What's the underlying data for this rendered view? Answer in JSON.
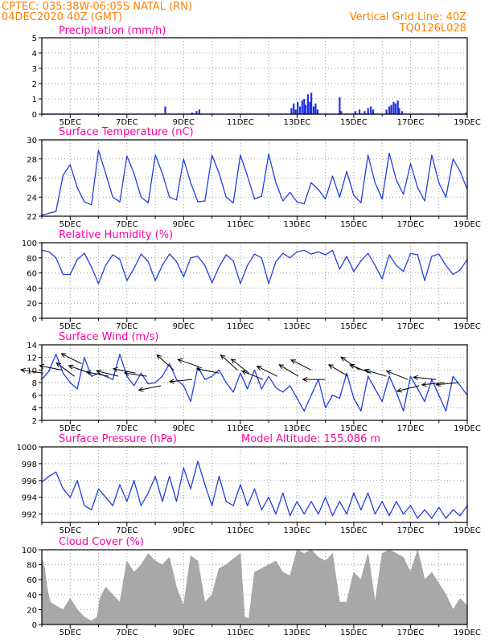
{
  "header": {
    "line1": "CPTEC:   035:38W-06:05S   NATAL (RN)",
    "line2": "04DEC2020 40Z (GMT)",
    "grid_label": "Vertical Grid Line: 40Z",
    "code": "TQ0126L028"
  },
  "colors": {
    "header": "#ff7f00",
    "title": "#ff00a0",
    "line": "#2040e0",
    "bar": "#2030e0",
    "cloud": "#a8a8a8"
  },
  "x_axis": {
    "ticks": [
      "5DEC",
      "7DEC",
      "9DEC",
      "11DEC",
      "13DEC",
      "15DEC",
      "17DEC",
      "19DEC"
    ]
  },
  "chart_data": [
    {
      "type": "bar",
      "title": "Precipitation (mm/h)",
      "ylim": [
        0,
        5
      ],
      "yticks": [
        "0",
        "1",
        "2",
        "3",
        "4",
        "5"
      ],
      "x_range_days": [
        4.0,
        19.0
      ],
      "bars": [
        [
          8.35,
          0.5
        ],
        [
          9.3,
          0.1
        ],
        [
          9.45,
          0.2
        ],
        [
          9.55,
          0.3
        ],
        [
          12.8,
          0.4
        ],
        [
          12.88,
          0.7
        ],
        [
          12.95,
          0.3
        ],
        [
          13.02,
          0.8
        ],
        [
          13.1,
          0.5
        ],
        [
          13.18,
          0.9
        ],
        [
          13.25,
          1.0
        ],
        [
          13.3,
          0.6
        ],
        [
          13.38,
          1.3
        ],
        [
          13.45,
          0.8
        ],
        [
          13.5,
          1.4
        ],
        [
          13.58,
          0.5
        ],
        [
          13.65,
          0.7
        ],
        [
          13.72,
          0.3
        ],
        [
          14.5,
          1.1
        ],
        [
          14.55,
          0.2
        ],
        [
          15.05,
          0.2
        ],
        [
          15.2,
          0.3
        ],
        [
          15.38,
          0.2
        ],
        [
          15.5,
          0.4
        ],
        [
          15.6,
          0.5
        ],
        [
          15.68,
          0.3
        ],
        [
          16.15,
          0.3
        ],
        [
          16.25,
          0.5
        ],
        [
          16.32,
          0.6
        ],
        [
          16.4,
          0.8
        ],
        [
          16.47,
          0.7
        ],
        [
          16.55,
          0.9
        ],
        [
          16.6,
          0.4
        ],
        [
          16.7,
          0.2
        ],
        [
          18.95,
          0.1
        ]
      ]
    },
    {
      "type": "line",
      "title": "Surface Temperature (nC)",
      "ylim": [
        22,
        30
      ],
      "yticks": [
        "22",
        "24",
        "26",
        "28",
        "30"
      ],
      "x_range_days": [
        4.0,
        19.0
      ],
      "x": [
        4.0,
        4.25,
        4.5,
        4.75,
        5.0,
        5.25,
        5.5,
        5.75,
        6.0,
        6.25,
        6.5,
        6.75,
        7.0,
        7.25,
        7.5,
        7.75,
        8.0,
        8.25,
        8.5,
        8.75,
        9.0,
        9.25,
        9.5,
        9.75,
        10.0,
        10.25,
        10.5,
        10.75,
        11.0,
        11.25,
        11.5,
        11.75,
        12.0,
        12.25,
        12.5,
        12.75,
        13.0,
        13.25,
        13.5,
        13.75,
        14.0,
        14.25,
        14.5,
        14.75,
        15.0,
        15.25,
        15.5,
        15.75,
        16.0,
        16.25,
        16.5,
        16.75,
        17.0,
        17.25,
        17.5,
        17.75,
        18.0,
        18.25,
        18.5,
        18.75,
        19.0
      ],
      "values": [
        22.1,
        22.3,
        22.5,
        26.3,
        27.4,
        25.0,
        23.5,
        23.2,
        28.9,
        26.5,
        24.0,
        23.5,
        28.3,
        26.5,
        24.0,
        23.4,
        28.4,
        26.5,
        24.0,
        23.7,
        28.0,
        25.5,
        23.5,
        23.6,
        28.4,
        26.5,
        24.0,
        23.4,
        28.4,
        26.2,
        23.8,
        24.1,
        28.5,
        25.5,
        23.6,
        24.5,
        23.5,
        23.3,
        25.5,
        24.8,
        23.8,
        26.2,
        24.0,
        26.7,
        24.2,
        23.4,
        28.4,
        25.5,
        23.8,
        28.6,
        25.8,
        24.3,
        27.5,
        25.0,
        23.6,
        28.4,
        25.5,
        24.0,
        28.0,
        26.7,
        24.8
      ]
    },
    {
      "type": "line",
      "title": "Relative Humidity (%)",
      "ylim": [
        0,
        100
      ],
      "yticks": [
        "0",
        "20",
        "40",
        "60",
        "80",
        "100"
      ],
      "x_range_days": [
        4.0,
        19.0
      ],
      "x": [
        4.0,
        4.25,
        4.5,
        4.75,
        5.0,
        5.25,
        5.5,
        5.75,
        6.0,
        6.25,
        6.5,
        6.75,
        7.0,
        7.25,
        7.5,
        7.75,
        8.0,
        8.25,
        8.5,
        8.75,
        9.0,
        9.25,
        9.5,
        9.75,
        10.0,
        10.25,
        10.5,
        10.75,
        11.0,
        11.25,
        11.5,
        11.75,
        12.0,
        12.25,
        12.5,
        12.75,
        13.0,
        13.25,
        13.5,
        13.75,
        14.0,
        14.25,
        14.5,
        14.75,
        15.0,
        15.25,
        15.5,
        15.75,
        16.0,
        16.25,
        16.5,
        16.75,
        17.0,
        17.25,
        17.5,
        17.75,
        18.0,
        18.25,
        18.5,
        18.75,
        19.0
      ],
      "values": [
        90,
        88,
        80,
        58,
        58,
        78,
        86,
        68,
        46,
        70,
        84,
        78,
        50,
        66,
        85,
        75,
        50,
        70,
        85,
        75,
        55,
        80,
        82,
        70,
        47,
        68,
        84,
        76,
        46,
        70,
        85,
        80,
        46,
        75,
        86,
        80,
        88,
        90,
        85,
        88,
        84,
        90,
        65,
        82,
        62,
        76,
        86,
        70,
        52,
        84,
        70,
        62,
        86,
        84,
        50,
        82,
        85,
        70,
        58,
        64,
        78
      ]
    },
    {
      "type": "line",
      "title": "Surface Wind (m/s)",
      "ylim": [
        2,
        14
      ],
      "yticks": [
        "2",
        "4",
        "6",
        "8",
        "10",
        "12",
        "14"
      ],
      "x_range_days": [
        4.0,
        19.0
      ],
      "x": [
        4.0,
        4.25,
        4.5,
        4.75,
        5.0,
        5.25,
        5.5,
        5.75,
        6.0,
        6.25,
        6.5,
        6.75,
        7.0,
        7.25,
        7.5,
        7.75,
        8.0,
        8.25,
        8.5,
        8.75,
        9.0,
        9.25,
        9.5,
        9.75,
        10.0,
        10.25,
        10.5,
        10.75,
        11.0,
        11.25,
        11.5,
        11.75,
        12.0,
        12.25,
        12.5,
        12.75,
        13.0,
        13.25,
        13.5,
        13.75,
        14.0,
        14.25,
        14.5,
        14.75,
        15.0,
        15.25,
        15.5,
        15.75,
        16.0,
        16.25,
        16.5,
        16.75,
        17.0,
        17.25,
        17.5,
        17.75,
        18.0,
        18.25,
        18.5,
        18.75,
        19.0
      ],
      "values": [
        8.5,
        9.8,
        12.5,
        9.5,
        8.0,
        7.0,
        12.0,
        9.0,
        9.5,
        9.0,
        8.5,
        12.5,
        9.0,
        7.5,
        9.5,
        7.8,
        8.0,
        9.0,
        11.0,
        8.5,
        7.5,
        5.0,
        10.5,
        8.5,
        9.0,
        10.0,
        8.0,
        6.5,
        9.5,
        7.0,
        10.0,
        7.0,
        9.0,
        7.2,
        6.5,
        7.5,
        5.5,
        3.5,
        6.0,
        8.5,
        4.0,
        6.0,
        5.5,
        9.5,
        5.5,
        3.5,
        9.0,
        7.0,
        5.0,
        9.0,
        6.5,
        3.5,
        9.0,
        7.0,
        5.0,
        8.5,
        6.0,
        3.5,
        9.0,
        7.5,
        6.0
      ],
      "arrows": [
        {
          "day": 4.05,
          "speed": 9.5,
          "u": -1.0,
          "v": 0.15
        },
        {
          "day": 4.7,
          "speed": 10.0,
          "u": -1.0,
          "v": 0.2
        },
        {
          "day": 5.15,
          "speed": 9.0,
          "u": -1.0,
          "v": 0.75
        },
        {
          "day": 5.4,
          "speed": 11.0,
          "u": -1.0,
          "v": 0.5
        },
        {
          "day": 5.7,
          "speed": 9.5,
          "u": -1.0,
          "v": 0.35
        },
        {
          "day": 6.35,
          "speed": 9.0,
          "u": -1.0,
          "v": 0.2
        },
        {
          "day": 6.7,
          "speed": 9.0,
          "u": -1.0,
          "v": 0.25
        },
        {
          "day": 7.3,
          "speed": 9.5,
          "u": -1.0,
          "v": 0.2
        },
        {
          "day": 7.7,
          "speed": 9.0,
          "u": -1.0,
          "v": 0.15
        },
        {
          "day": 8.2,
          "speed": 7.5,
          "u": -1.0,
          "v": -0.2
        },
        {
          "day": 8.65,
          "speed": 10.0,
          "u": -1.0,
          "v": 0.9
        },
        {
          "day": 9.3,
          "speed": 8.5,
          "u": -1.0,
          "v": -0.1
        },
        {
          "day": 9.55,
          "speed": 10.5,
          "u": -1.0,
          "v": 0.35
        },
        {
          "day": 10.25,
          "speed": 9.5,
          "u": -1.0,
          "v": 0.2
        },
        {
          "day": 10.9,
          "speed": 10.0,
          "u": -1.0,
          "v": 0.9
        },
        {
          "day": 11.3,
          "speed": 9.5,
          "u": -1.0,
          "v": 0.8
        },
        {
          "day": 11.8,
          "speed": 8.5,
          "u": -1.0,
          "v": 0.4
        },
        {
          "day": 12.3,
          "speed": 9.0,
          "u": -1.0,
          "v": 0.5
        },
        {
          "day": 13.05,
          "speed": 9.0,
          "u": -1.0,
          "v": 0.6
        },
        {
          "day": 13.5,
          "speed": 10.0,
          "u": -1.0,
          "v": 0.5
        },
        {
          "day": 14.0,
          "speed": 8.5,
          "u": -1.0,
          "v": 0.0
        },
        {
          "day": 14.8,
          "speed": 9.0,
          "u": -1.0,
          "v": 0.6
        },
        {
          "day": 15.2,
          "speed": 10.0,
          "u": -1.0,
          "v": 0.7
        },
        {
          "day": 15.6,
          "speed": 9.5,
          "u": -1.0,
          "v": 0.4
        },
        {
          "day": 16.15,
          "speed": 9.0,
          "u": -1.0,
          "v": 0.3
        },
        {
          "day": 16.9,
          "speed": 8.5,
          "u": -1.0,
          "v": 0.4
        },
        {
          "day": 17.3,
          "speed": 7.5,
          "u": -1.0,
          "v": -0.25
        },
        {
          "day": 17.9,
          "speed": 8.5,
          "u": -1.0,
          "v": 0.1
        },
        {
          "day": 18.2,
          "speed": 8.0,
          "u": -1.0,
          "v": -0.1
        },
        {
          "day": 18.7,
          "speed": 8.0,
          "u": -1.0,
          "v": -0.1
        }
      ]
    },
    {
      "type": "line",
      "title": "Surface Pressure (hPa)",
      "annotation": "Model Altitude: 155.086 m",
      "ylim": [
        991,
        1000
      ],
      "yticks": [
        "992",
        "994",
        "996",
        "998",
        "1000"
      ],
      "x_range_days": [
        4.0,
        19.0
      ],
      "x": [
        4.0,
        4.25,
        4.5,
        4.75,
        5.0,
        5.25,
        5.5,
        5.75,
        6.0,
        6.25,
        6.5,
        6.75,
        7.0,
        7.25,
        7.5,
        7.75,
        8.0,
        8.25,
        8.5,
        8.75,
        9.0,
        9.25,
        9.5,
        9.75,
        10.0,
        10.25,
        10.5,
        10.75,
        11.0,
        11.25,
        11.5,
        11.75,
        12.0,
        12.25,
        12.5,
        12.75,
        13.0,
        13.25,
        13.5,
        13.75,
        14.0,
        14.25,
        14.5,
        14.75,
        15.0,
        15.25,
        15.5,
        15.75,
        16.0,
        16.25,
        16.5,
        16.75,
        17.0,
        17.25,
        17.5,
        17.75,
        18.0,
        18.25,
        18.5,
        18.75,
        19.0
      ],
      "values": [
        995.8,
        996.5,
        997.0,
        995.0,
        994.0,
        996.0,
        993.0,
        992.5,
        995.0,
        994.0,
        993.0,
        995.5,
        993.5,
        996.0,
        993.0,
        994.5,
        996.5,
        993.5,
        996.5,
        993.5,
        997.5,
        995.0,
        998.3,
        995.5,
        993.0,
        996.5,
        993.5,
        993.0,
        995.5,
        993.0,
        995.0,
        992.5,
        994.0,
        992.0,
        994.5,
        991.8,
        993.5,
        992.0,
        993.5,
        992.0,
        994.0,
        991.8,
        993.5,
        992.0,
        994.5,
        992.5,
        994.5,
        992.0,
        993.5,
        991.8,
        993.5,
        992.0,
        993.0,
        991.5,
        992.5,
        991.5,
        992.8,
        991.5,
        992.5,
        991.8,
        993.0
      ]
    },
    {
      "type": "area",
      "title": "Cloud Cover (%)",
      "ylim": [
        0,
        100
      ],
      "yticks": [
        "0",
        "20",
        "40",
        "60",
        "80",
        "100"
      ],
      "x_range_days": [
        4.0,
        19.0
      ],
      "x": [
        4.0,
        4.1,
        4.2,
        4.3,
        4.5,
        4.75,
        5.0,
        5.25,
        5.5,
        5.75,
        5.95,
        6.05,
        6.25,
        6.5,
        6.75,
        7.0,
        7.25,
        7.5,
        7.75,
        8.0,
        8.25,
        8.5,
        8.75,
        9.0,
        9.25,
        9.5,
        9.75,
        10.0,
        10.25,
        10.5,
        10.75,
        11.0,
        11.15,
        11.3,
        11.5,
        11.75,
        12.0,
        12.25,
        12.5,
        12.75,
        13.0,
        13.25,
        13.5,
        13.75,
        14.0,
        14.25,
        14.5,
        14.75,
        15.0,
        15.25,
        15.5,
        15.75,
        16.0,
        16.25,
        16.5,
        16.75,
        17.0,
        17.25,
        17.5,
        17.75,
        18.0,
        18.25,
        18.5,
        18.75,
        19.0
      ],
      "values": [
        90,
        75,
        45,
        30,
        25,
        20,
        35,
        20,
        10,
        5,
        10,
        35,
        50,
        40,
        30,
        85,
        70,
        80,
        95,
        85,
        80,
        90,
        50,
        25,
        92,
        85,
        30,
        40,
        75,
        80,
        88,
        95,
        10,
        8,
        70,
        75,
        80,
        85,
        70,
        65,
        100,
        95,
        100,
        90,
        85,
        95,
        30,
        30,
        70,
        60,
        95,
        30,
        95,
        100,
        95,
        90,
        70,
        100,
        60,
        70,
        55,
        40,
        20,
        35,
        25
      ]
    }
  ]
}
